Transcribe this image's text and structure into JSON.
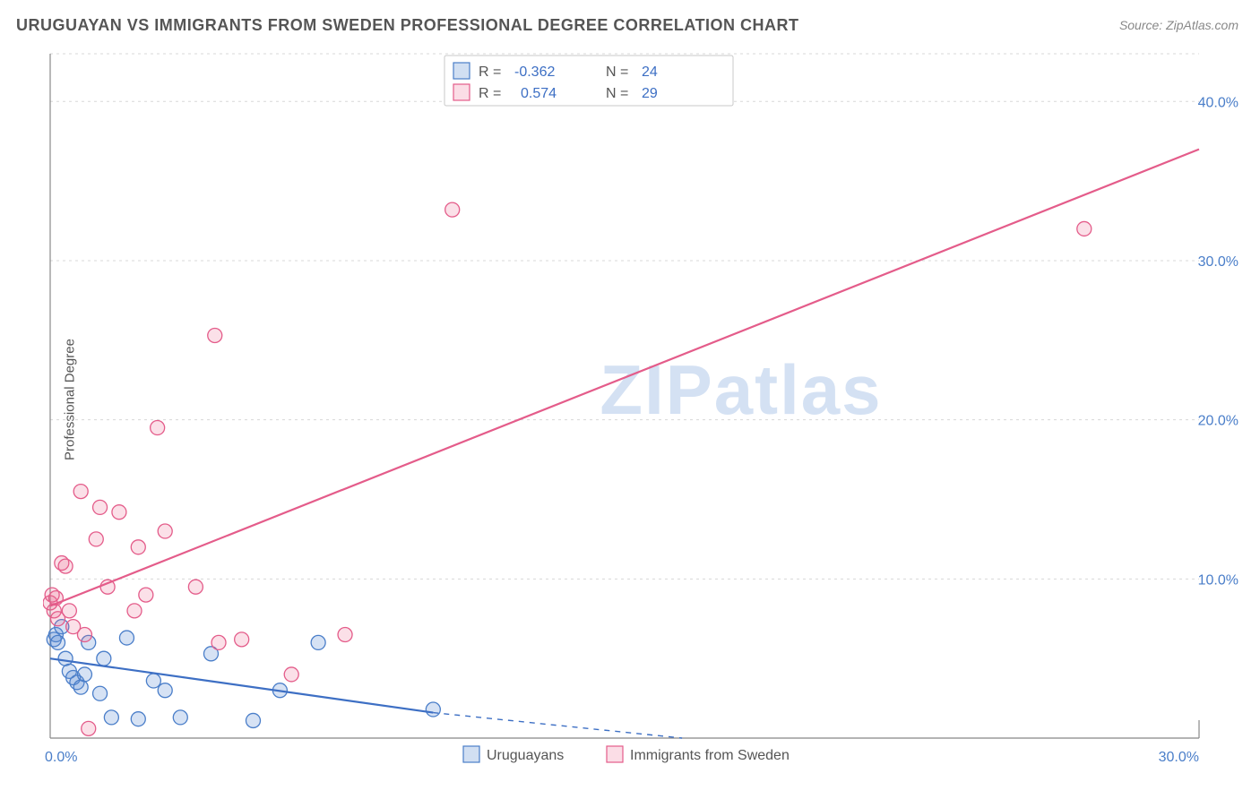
{
  "title": "URUGUAYAN VS IMMIGRANTS FROM SWEDEN PROFESSIONAL DEGREE CORRELATION CHART",
  "source": "Source: ZipAtlas.com",
  "ylabel": "Professional Degree",
  "watermark": "ZIPatlas",
  "chart": {
    "type": "scatter",
    "xlim": [
      0,
      30
    ],
    "ylim": [
      0,
      43
    ],
    "xticks": [
      {
        "v": 0,
        "label": "0.0%"
      },
      {
        "v": 30,
        "label": "30.0%"
      }
    ],
    "yticks": [
      {
        "v": 10,
        "label": "10.0%"
      },
      {
        "v": 20,
        "label": "20.0%"
      },
      {
        "v": 30,
        "label": "30.0%"
      },
      {
        "v": 40,
        "label": "40.0%"
      }
    ],
    "grid_y": [
      10,
      20,
      30,
      40,
      43
    ],
    "background_color": "#ffffff",
    "grid_color": "#d8d8d8",
    "series": [
      {
        "name": "Uruguayans",
        "color_fill": "rgba(90,140,210,0.25)",
        "color_stroke": "#4a7ec9",
        "marker_r": 8,
        "R": "-0.362",
        "N": "24",
        "trend": {
          "x1": 0,
          "y1": 5.0,
          "x2": 10.0,
          "y2": 1.6,
          "solid_until_x": 10.0,
          "dash_to_x": 16.5,
          "dash_to_y": 0.0,
          "color": "#3d6fc4",
          "width": 2.2
        },
        "points": [
          [
            0.1,
            6.2
          ],
          [
            0.15,
            6.5
          ],
          [
            0.2,
            6.0
          ],
          [
            0.3,
            7.0
          ],
          [
            0.4,
            5.0
          ],
          [
            0.5,
            4.2
          ],
          [
            0.6,
            3.8
          ],
          [
            0.7,
            3.5
          ],
          [
            0.8,
            3.2
          ],
          [
            0.9,
            4.0
          ],
          [
            1.0,
            6.0
          ],
          [
            1.3,
            2.8
          ],
          [
            1.4,
            5.0
          ],
          [
            1.6,
            1.3
          ],
          [
            2.0,
            6.3
          ],
          [
            2.3,
            1.2
          ],
          [
            2.7,
            3.6
          ],
          [
            3.0,
            3.0
          ],
          [
            3.4,
            1.3
          ],
          [
            4.2,
            5.3
          ],
          [
            5.3,
            1.1
          ],
          [
            6.0,
            3.0
          ],
          [
            7.0,
            6.0
          ],
          [
            10.0,
            1.8
          ]
        ]
      },
      {
        "name": "Immigrants from Sweden",
        "color_fill": "rgba(235,100,140,0.20)",
        "color_stroke": "#e45c8a",
        "marker_r": 8,
        "R": "0.574",
        "N": "29",
        "trend": {
          "x1": 0,
          "y1": 8.3,
          "x2": 30.0,
          "y2": 37.0,
          "color": "#e45c8a",
          "width": 2.2
        },
        "points": [
          [
            0.0,
            8.5
          ],
          [
            0.05,
            9.0
          ],
          [
            0.1,
            8.0
          ],
          [
            0.15,
            8.8
          ],
          [
            0.2,
            7.5
          ],
          [
            0.3,
            11.0
          ],
          [
            0.4,
            10.8
          ],
          [
            0.5,
            8.0
          ],
          [
            0.6,
            7.0
          ],
          [
            0.8,
            15.5
          ],
          [
            0.9,
            6.5
          ],
          [
            1.2,
            12.5
          ],
          [
            1.3,
            14.5
          ],
          [
            1.5,
            9.5
          ],
          [
            1.8,
            14.2
          ],
          [
            2.2,
            8.0
          ],
          [
            2.3,
            12.0
          ],
          [
            2.5,
            9.0
          ],
          [
            2.8,
            19.5
          ],
          [
            3.0,
            13.0
          ],
          [
            3.8,
            9.5
          ],
          [
            4.3,
            25.3
          ],
          [
            4.4,
            6.0
          ],
          [
            5.0,
            6.2
          ],
          [
            6.3,
            4.0
          ],
          [
            7.7,
            6.5
          ],
          [
            10.5,
            33.2
          ],
          [
            27.0,
            32.0
          ],
          [
            1.0,
            0.6
          ]
        ]
      }
    ],
    "bottom_legend": [
      {
        "label": "Uruguayans",
        "swatch": "b"
      },
      {
        "label": "Immigrants from Sweden",
        "swatch": "p"
      }
    ]
  }
}
